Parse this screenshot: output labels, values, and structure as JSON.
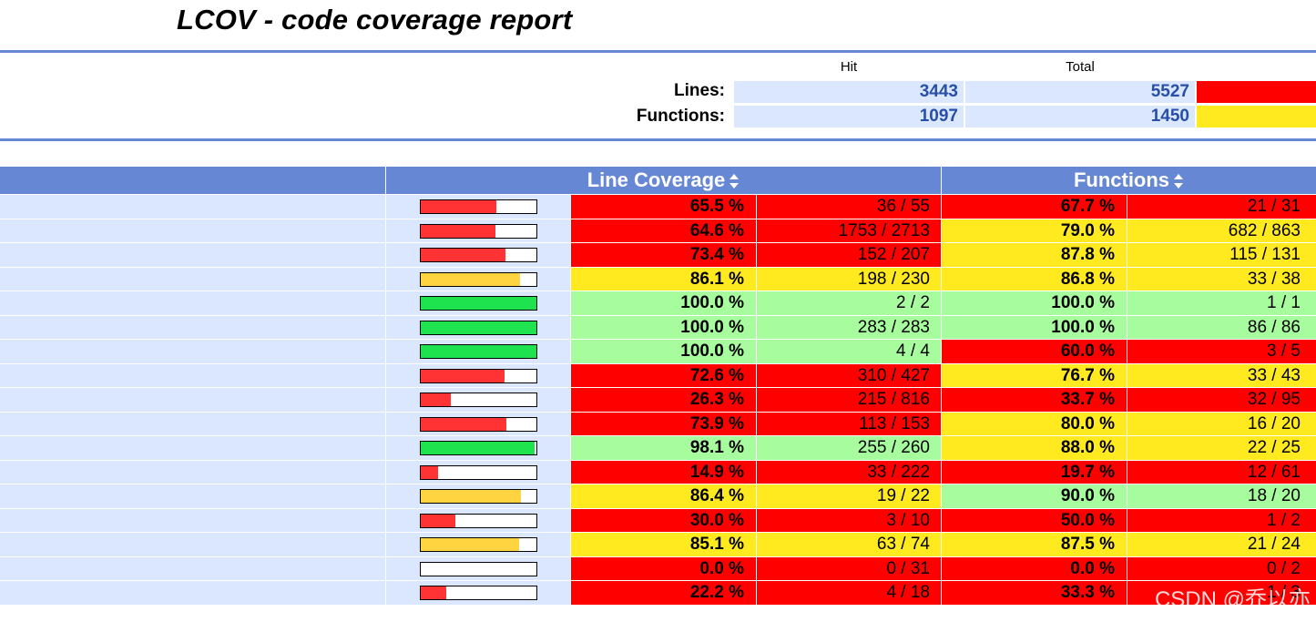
{
  "title": "LCOV - code coverage report",
  "summary": {
    "hit_header": "Hit",
    "total_header": "Total",
    "lines": {
      "label": "Lines:",
      "hit": "3443",
      "total": "5527",
      "color": "#ff0000"
    },
    "functions": {
      "label": "Functions:",
      "hit": "1097",
      "total": "1450",
      "color": "#ffea20"
    }
  },
  "table": {
    "line_coverage_header": "Line Coverage",
    "functions_header": "Functions",
    "rows": [
      {
        "line_pct": "65.5 %",
        "line_num": "36 / 55",
        "line_rate": 0.655,
        "line_level": "lo",
        "func_pct": "67.7 %",
        "func_num": "21 / 31",
        "func_level": "lo"
      },
      {
        "line_pct": "64.6 %",
        "line_num": "1753 / 2713",
        "line_rate": 0.646,
        "line_level": "lo",
        "func_pct": "79.0 %",
        "func_num": "682 / 863",
        "func_level": "med"
      },
      {
        "line_pct": "73.4 %",
        "line_num": "152 / 207",
        "line_rate": 0.734,
        "line_level": "lo",
        "func_pct": "87.8 %",
        "func_num": "115 / 131",
        "func_level": "med"
      },
      {
        "line_pct": "86.1 %",
        "line_num": "198 / 230",
        "line_rate": 0.861,
        "line_level": "med",
        "func_pct": "86.8 %",
        "func_num": "33 / 38",
        "func_level": "med"
      },
      {
        "line_pct": "100.0 %",
        "line_num": "2 / 2",
        "line_rate": 1.0,
        "line_level": "hi",
        "func_pct": "100.0 %",
        "func_num": "1 / 1",
        "func_level": "hi"
      },
      {
        "line_pct": "100.0 %",
        "line_num": "283 / 283",
        "line_rate": 1.0,
        "line_level": "hi",
        "func_pct": "100.0 %",
        "func_num": "86 / 86",
        "func_level": "hi"
      },
      {
        "line_pct": "100.0 %",
        "line_num": "4 / 4",
        "line_rate": 1.0,
        "line_level": "hi",
        "func_pct": "60.0 %",
        "func_num": "3 / 5",
        "func_level": "lo"
      },
      {
        "line_pct": "72.6 %",
        "line_num": "310 / 427",
        "line_rate": 0.726,
        "line_level": "lo",
        "func_pct": "76.7 %",
        "func_num": "33 / 43",
        "func_level": "med"
      },
      {
        "line_pct": "26.3 %",
        "line_num": "215 / 816",
        "line_rate": 0.263,
        "line_level": "lo",
        "func_pct": "33.7 %",
        "func_num": "32 / 95",
        "func_level": "lo"
      },
      {
        "line_pct": "73.9 %",
        "line_num": "113 / 153",
        "line_rate": 0.739,
        "line_level": "lo",
        "func_pct": "80.0 %",
        "func_num": "16 / 20",
        "func_level": "med"
      },
      {
        "line_pct": "98.1 %",
        "line_num": "255 / 260",
        "line_rate": 0.981,
        "line_level": "hi",
        "func_pct": "88.0 %",
        "func_num": "22 / 25",
        "func_level": "med"
      },
      {
        "line_pct": "14.9 %",
        "line_num": "33 / 222",
        "line_rate": 0.149,
        "line_level": "lo",
        "func_pct": "19.7 %",
        "func_num": "12 / 61",
        "func_level": "lo"
      },
      {
        "line_pct": "86.4 %",
        "line_num": "19 / 22",
        "line_rate": 0.864,
        "line_level": "med",
        "func_pct": "90.0 %",
        "func_num": "18 / 20",
        "func_level": "hi"
      },
      {
        "line_pct": "30.0 %",
        "line_num": "3 / 10",
        "line_rate": 0.3,
        "line_level": "lo",
        "func_pct": "50.0 %",
        "func_num": "1 / 2",
        "func_level": "lo"
      },
      {
        "line_pct": "85.1 %",
        "line_num": "63 / 74",
        "line_rate": 0.851,
        "line_level": "med",
        "func_pct": "87.5 %",
        "func_num": "21 / 24",
        "func_level": "med"
      },
      {
        "line_pct": "0.0 %",
        "line_num": "0 / 31",
        "line_rate": 0.0,
        "line_level": "lo",
        "func_pct": "0.0 %",
        "func_num": "0 / 2",
        "func_level": "lo"
      },
      {
        "line_pct": "22.2 %",
        "line_num": "4 / 18",
        "line_rate": 0.222,
        "line_level": "lo",
        "func_pct": "33.3 %",
        "func_num": "1 / 3",
        "func_level": "lo"
      }
    ]
  },
  "watermark": "CSDN @乔以亦"
}
